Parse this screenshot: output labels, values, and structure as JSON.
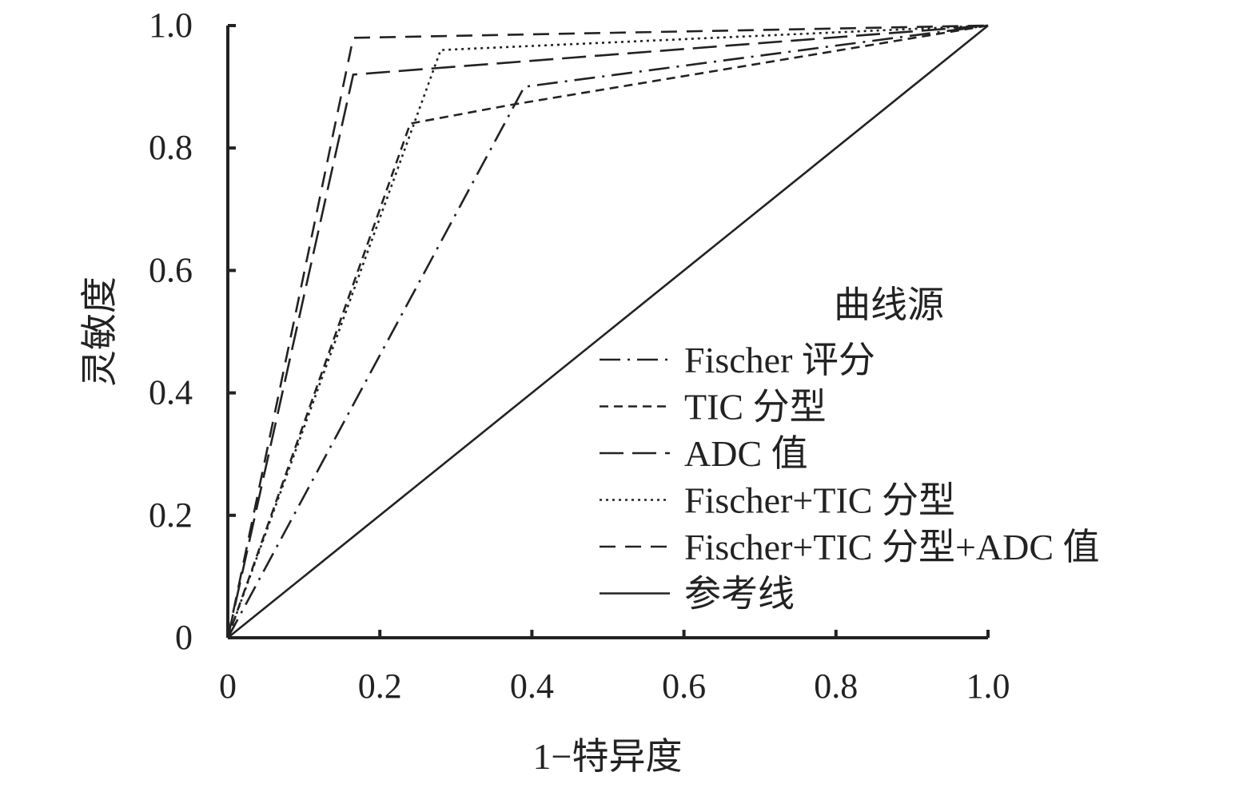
{
  "chart_data": {
    "type": "line",
    "title": "",
    "xlabel": "1−特异度",
    "ylabel": "灵敏度",
    "xlim": [
      0,
      1
    ],
    "ylim": [
      0,
      1
    ],
    "x_ticks": [
      "0",
      "0.2",
      "0.4",
      "0.6",
      "0.8",
      "1.0"
    ],
    "y_ticks": [
      "0",
      "0.2",
      "0.4",
      "0.6",
      "0.8",
      "1.0"
    ],
    "grid": false,
    "legend": {
      "title": "曲线源",
      "position": "center-right"
    },
    "series": [
      {
        "name": "Fischer 评分",
        "style": "dash-dot",
        "x": [
          0,
          0.39,
          1.0
        ],
        "y": [
          0,
          0.9,
          1.0
        ]
      },
      {
        "name": "TIC 分型",
        "style": "short-dash",
        "x": [
          0,
          0.24,
          0.37,
          1.0
        ],
        "y": [
          0,
          0.84,
          0.87,
          1.0
        ]
      },
      {
        "name": "ADC 值",
        "style": "long-dash",
        "x": [
          0,
          0.165,
          1.0
        ],
        "y": [
          0,
          0.92,
          1.0
        ]
      },
      {
        "name": "Fischer+TIC 分型",
        "style": "dotted",
        "x": [
          0,
          0.28,
          1.0
        ],
        "y": [
          0,
          0.96,
          1.0
        ]
      },
      {
        "name": "Fischer+TIC 分型+ADC 值",
        "style": "dashed",
        "x": [
          0,
          0.165,
          1.0
        ],
        "y": [
          0,
          0.98,
          1.0
        ]
      },
      {
        "name": "参考线",
        "style": "solid",
        "x": [
          0,
          1.0
        ],
        "y": [
          0,
          1.0
        ]
      }
    ]
  }
}
